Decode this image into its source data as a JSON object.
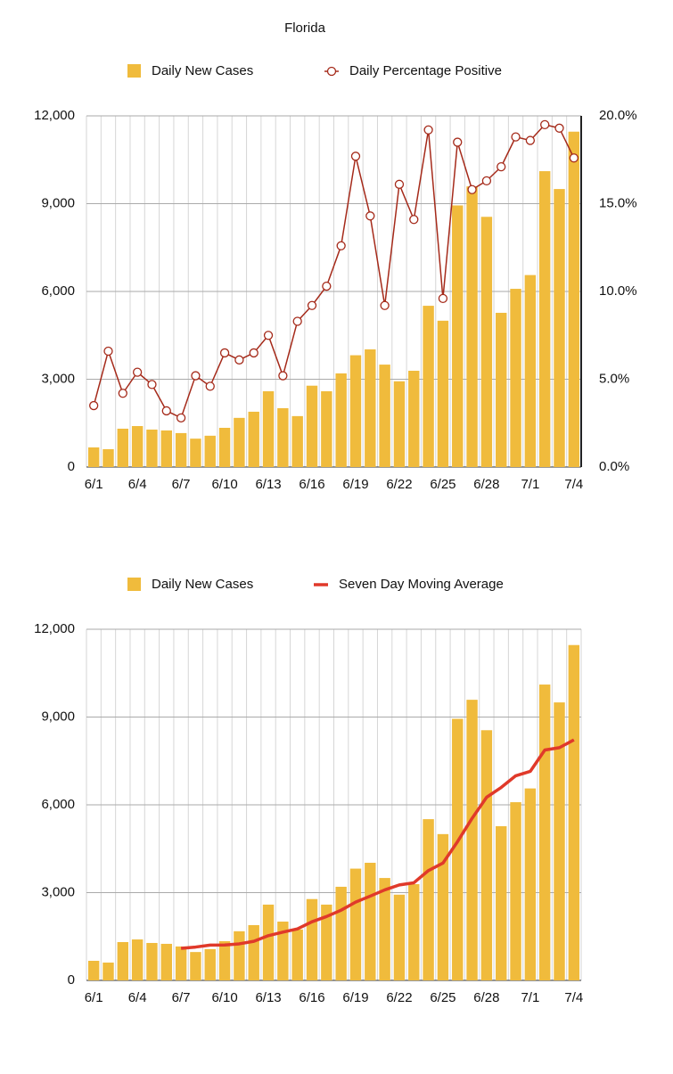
{
  "chart_data": [
    {
      "type": "combo",
      "title": "Florida",
      "categories": [
        "6/1",
        null,
        null,
        "6/4",
        null,
        null,
        "6/7",
        null,
        null,
        "6/10",
        null,
        null,
        "6/13",
        null,
        null,
        "6/16",
        null,
        null,
        "6/19",
        null,
        null,
        "6/22",
        null,
        null,
        "6/25",
        null,
        null,
        "6/28",
        null,
        null,
        "7/1",
        null,
        null,
        "7/4"
      ],
      "series": [
        {
          "name": "Daily New Cases",
          "type": "bar",
          "color": "#f0bb3c",
          "values": [
            670,
            610,
            1310,
            1400,
            1280,
            1250,
            1160,
            970,
            1070,
            1340,
            1680,
            1890,
            2590,
            2010,
            1740,
            2780,
            2590,
            3200,
            3820,
            4020,
            3500,
            2930,
            3290,
            5510,
            5000,
            8940,
            9590,
            8550,
            5270,
            6090,
            6560,
            10110,
            9500,
            11460
          ]
        },
        {
          "name": "Daily Percentage Positive",
          "type": "line",
          "axis": "y2",
          "color": "#a52a1a",
          "markers": true,
          "values": [
            3.5,
            6.6,
            4.2,
            5.4,
            4.7,
            3.2,
            2.8,
            5.2,
            4.6,
            6.5,
            6.1,
            6.5,
            7.5,
            5.2,
            8.3,
            9.2,
            10.3,
            12.6,
            17.7,
            14.3,
            9.2,
            16.1,
            14.1,
            19.2,
            9.6,
            18.5,
            15.8,
            16.3,
            17.1,
            18.8,
            18.6,
            19.5,
            19.3,
            17.6
          ]
        }
      ],
      "ylim": [
        0,
        12000
      ],
      "yticks": [
        0,
        {
          "value": 3000,
          "label": "3,000"
        },
        {
          "value": 6000,
          "label": "6,000"
        },
        {
          "value": 9000,
          "label": "9,000"
        },
        {
          "value": 12000,
          "label": "12,000"
        }
      ],
      "y2lim": [
        0,
        20
      ],
      "y2ticks": [
        {
          "value": 0,
          "label": "0.0%"
        },
        {
          "value": 5,
          "label": "5.0%"
        },
        {
          "value": 10,
          "label": "10.0%"
        },
        {
          "value": 15,
          "label": "15.0%"
        },
        {
          "value": 20,
          "label": "20.0%"
        }
      ],
      "grid": true
    },
    {
      "type": "combo",
      "categories": [
        "6/1",
        null,
        null,
        "6/4",
        null,
        null,
        "6/7",
        null,
        null,
        "6/10",
        null,
        null,
        "6/13",
        null,
        null,
        "6/16",
        null,
        null,
        "6/19",
        null,
        null,
        "6/22",
        null,
        null,
        "6/25",
        null,
        null,
        "6/28",
        null,
        null,
        "7/1",
        null,
        null,
        "7/4"
      ],
      "series": [
        {
          "name": "Daily New Cases",
          "type": "bar",
          "color": "#f0bb3c",
          "values": [
            670,
            610,
            1310,
            1400,
            1280,
            1250,
            1160,
            970,
            1070,
            1340,
            1680,
            1890,
            2590,
            2010,
            1740,
            2780,
            2590,
            3200,
            3820,
            4020,
            3500,
            2930,
            3290,
            5510,
            5000,
            8940,
            9590,
            8550,
            5270,
            6090,
            6560,
            10110,
            9500,
            11460
          ]
        },
        {
          "name": "Seven Day Moving Average",
          "type": "line",
          "color": "#e0392a",
          "markers": false,
          "values": [
            null,
            null,
            null,
            null,
            null,
            null,
            1097,
            1140,
            1206,
            1210,
            1250,
            1337,
            1529,
            1650,
            1760,
            2004,
            2183,
            2400,
            2676,
            2880,
            3093,
            3263,
            3336,
            3753,
            4010,
            4741,
            5537,
            6259,
            6593,
            6993,
            7143,
            7873,
            7953,
            8220
          ]
        }
      ],
      "ylim": [
        0,
        12000
      ],
      "yticks": [
        0,
        {
          "value": 3000,
          "label": "3,000"
        },
        {
          "value": 6000,
          "label": "6,000"
        },
        {
          "value": 9000,
          "label": "9,000"
        },
        {
          "value": 12000,
          "label": "12,000"
        }
      ],
      "grid": true
    }
  ]
}
